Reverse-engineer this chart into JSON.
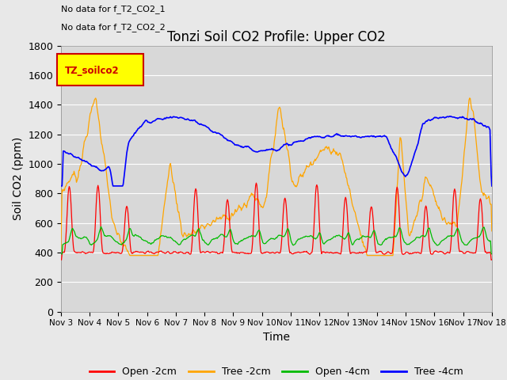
{
  "title": "Tonzi Soil CO2 Profile: Upper CO2",
  "xlabel": "Time",
  "ylabel": "Soil CO2 (ppm)",
  "ylim": [
    0,
    1800
  ],
  "yticks": [
    0,
    200,
    400,
    600,
    800,
    1000,
    1200,
    1400,
    1600,
    1800
  ],
  "xtick_labels": [
    "Nov 3",
    "Nov 4",
    "Nov 5",
    "Nov 6",
    "Nov 7",
    "Nov 8",
    "Nov 9",
    "Nov 10",
    "Nov 11",
    "Nov 12",
    "Nov 13",
    "Nov 14",
    "Nov 15",
    "Nov 16",
    "Nov 17",
    "Nov 18"
  ],
  "annotations": [
    "No data for f_T2_CO2_1",
    "No data for f_T2_CO2_2"
  ],
  "legend_label": "TZ_soilco2",
  "colors": {
    "open_2cm": "#FF0000",
    "tree_2cm": "#FFA500",
    "open_4cm": "#00BB00",
    "tree_4cm": "#0000FF"
  },
  "line_labels": [
    "Open -2cm",
    "Tree -2cm",
    "Open -4cm",
    "Tree -4cm"
  ],
  "fig_bg_color": "#E8E8E8",
  "plot_bg_color": "#D8D8D8"
}
